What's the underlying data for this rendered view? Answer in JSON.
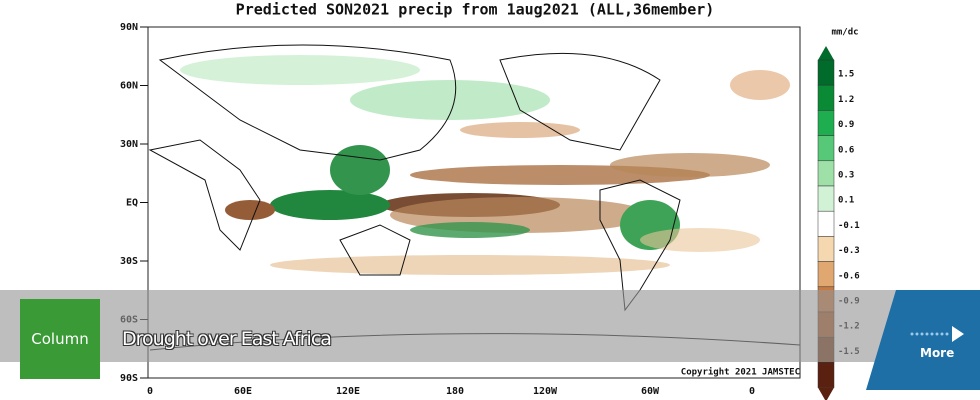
{
  "map": {
    "title": "Predicted SON2021 precip from 1aug2021 (ALL,36member)",
    "lat_labels": [
      "90N",
      "60N",
      "30N",
      "EQ",
      "30S",
      "60S",
      "90S"
    ],
    "lon_labels": [
      "0",
      "60E",
      "120E",
      "180",
      "120W",
      "60W",
      "0"
    ],
    "unit": "mm/dc",
    "colorbar_labels": [
      "1.5",
      "1.2",
      "0.9",
      "0.6",
      "0.3",
      "0.1",
      "-0.1",
      "-0.3",
      "-0.6",
      "-0.9",
      "-1.2",
      "-1.5"
    ],
    "copyright": "Copyright 2021 JAMSTEC"
  },
  "feature": {
    "category": "Column",
    "headline": "Drought over East Africa",
    "link": "More"
  }
}
